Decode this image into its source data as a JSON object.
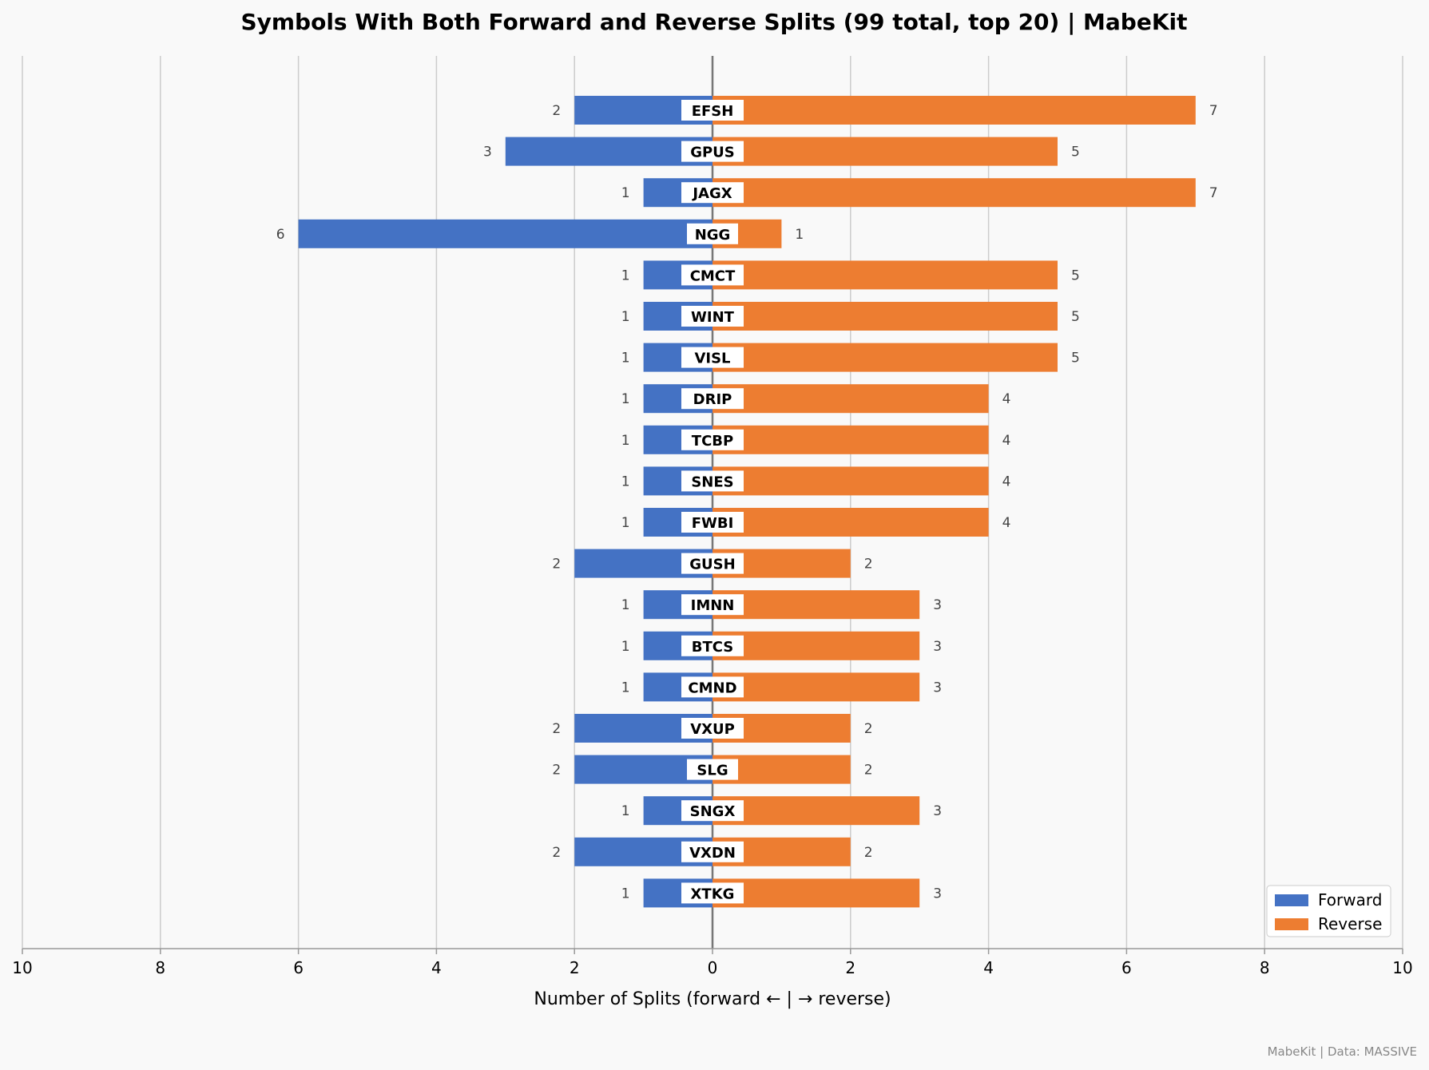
{
  "chart_data": {
    "type": "bar",
    "orientation": "horizontal-diverging",
    "title": "Symbols With Both Forward and Reverse Splits  (99 total, top 20)  |  MabeKit",
    "xlabel": "Number of Splits  (forward  ←  |  →  reverse)",
    "xlim": [
      -10,
      10
    ],
    "xticks": [
      "10",
      "8",
      "6",
      "4",
      "2",
      "0",
      "2",
      "4",
      "6",
      "8",
      "10"
    ],
    "grid": true,
    "legend_position": "bottom-right",
    "categories": [
      "EFSH",
      "GPUS",
      "JAGX",
      "NGG",
      "CMCT",
      "WINT",
      "VISL",
      "DRIP",
      "TCBP",
      "SNES",
      "FWBI",
      "GUSH",
      "IMNN",
      "BTCS",
      "CMND",
      "VXUP",
      "SLG",
      "SNGX",
      "VXDN",
      "XTKG"
    ],
    "series": [
      {
        "name": "Forward",
        "color": "#4472c4",
        "values": [
          2,
          3,
          1,
          6,
          1,
          1,
          1,
          1,
          1,
          1,
          1,
          2,
          1,
          1,
          1,
          2,
          2,
          1,
          2,
          1
        ]
      },
      {
        "name": "Reverse",
        "color": "#ed7d31",
        "values": [
          7,
          5,
          7,
          1,
          5,
          5,
          5,
          4,
          4,
          4,
          4,
          2,
          3,
          3,
          3,
          2,
          2,
          3,
          2,
          3
        ]
      }
    ],
    "footer": "MabeKit  |  Data: MASSIVE"
  }
}
